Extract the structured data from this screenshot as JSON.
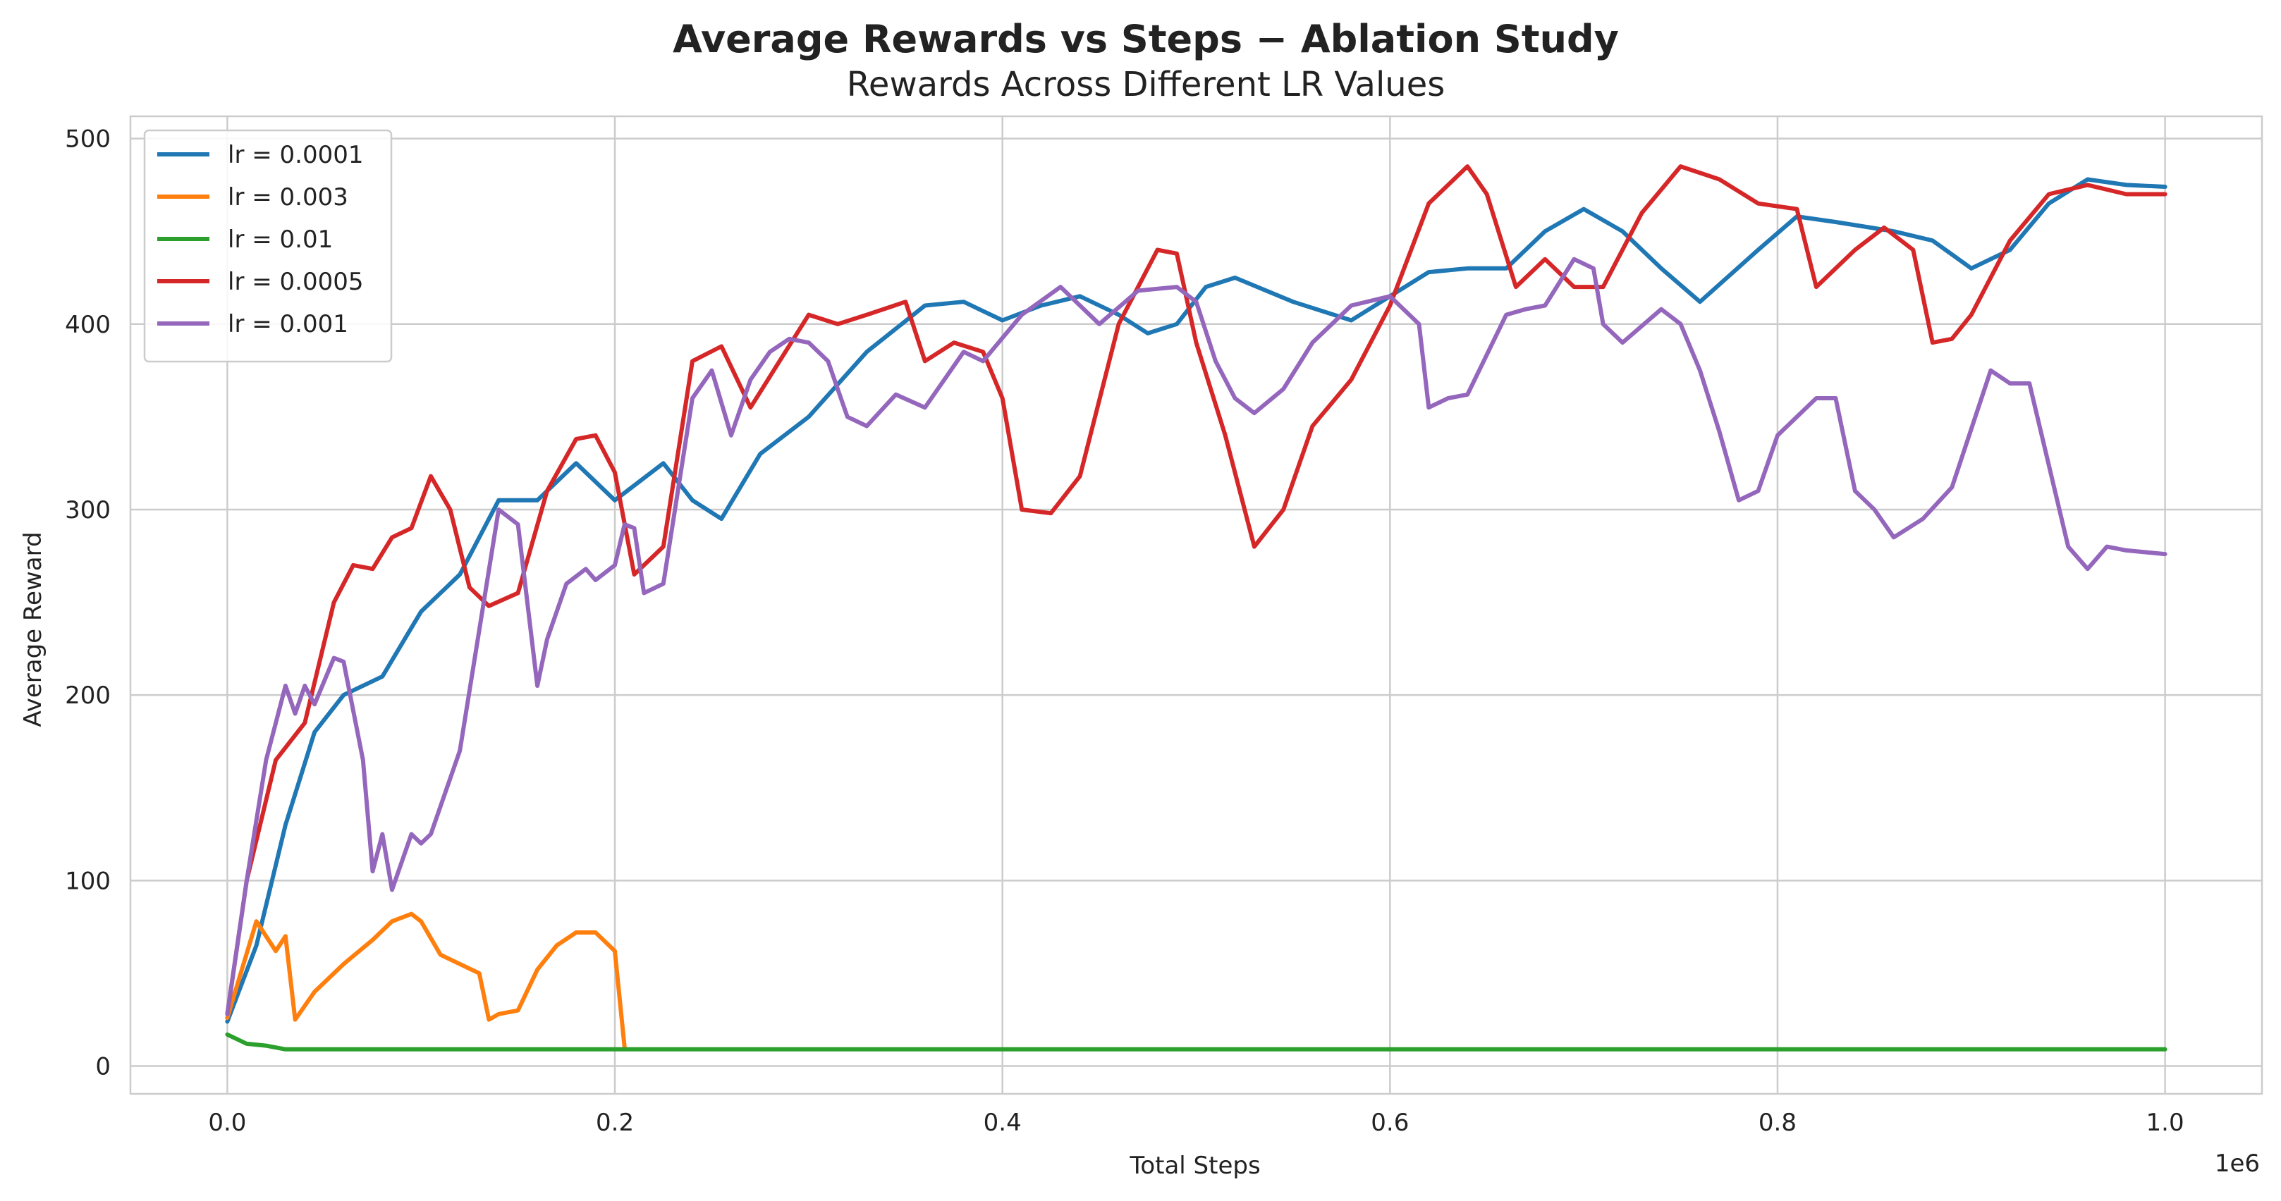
{
  "chart_data": {
    "type": "line",
    "title": "Average Rewards vs Steps  −  Ablation Study",
    "subtitle": "Rewards Across Different LR Values",
    "xlabel": "Total Steps",
    "ylabel": "Average Reward",
    "x_offset_label": "1e6",
    "xlim": [
      -0.05,
      1.05
    ],
    "ylim": [
      -15,
      512
    ],
    "xticks": [
      0.0,
      0.2,
      0.4,
      0.6,
      0.8,
      1.0
    ],
    "xtick_labels": [
      "0.0",
      "0.2",
      "0.4",
      "0.6",
      "0.8",
      "1.0"
    ],
    "yticks": [
      0,
      100,
      200,
      300,
      400,
      500
    ],
    "ytick_labels": [
      "0",
      "100",
      "200",
      "300",
      "400",
      "500"
    ],
    "grid": true,
    "legend_position": "top-left",
    "series": [
      {
        "name": "lr = 0.0001",
        "color": "#1f77b4",
        "x": [
          0.0,
          0.015,
          0.03,
          0.045,
          0.06,
          0.08,
          0.1,
          0.12,
          0.14,
          0.16,
          0.18,
          0.2,
          0.225,
          0.24,
          0.255,
          0.275,
          0.3,
          0.33,
          0.36,
          0.38,
          0.4,
          0.42,
          0.44,
          0.46,
          0.475,
          0.49,
          0.505,
          0.52,
          0.55,
          0.58,
          0.6,
          0.62,
          0.64,
          0.66,
          0.68,
          0.7,
          0.72,
          0.74,
          0.76,
          0.79,
          0.81,
          0.83,
          0.86,
          0.88,
          0.9,
          0.92,
          0.94,
          0.96,
          0.98,
          1.0
        ],
        "y": [
          24,
          65,
          130,
          180,
          200,
          210,
          245,
          265,
          305,
          305,
          325,
          305,
          325,
          305,
          295,
          330,
          350,
          385,
          410,
          412,
          402,
          410,
          415,
          405,
          395,
          400,
          420,
          425,
          412,
          402,
          415,
          428,
          430,
          430,
          450,
          462,
          450,
          430,
          412,
          440,
          458,
          455,
          450,
          445,
          430,
          440,
          465,
          478,
          475,
          474
        ]
      },
      {
        "name": "lr = 0.003",
        "color": "#ff7f0e",
        "x": [
          0.0,
          0.015,
          0.025,
          0.03,
          0.035,
          0.045,
          0.06,
          0.075,
          0.085,
          0.095,
          0.1,
          0.11,
          0.12,
          0.13,
          0.135,
          0.14,
          0.15,
          0.16,
          0.17,
          0.18,
          0.19,
          0.2,
          0.205
        ],
        "y": [
          26,
          78,
          62,
          70,
          25,
          40,
          55,
          68,
          78,
          82,
          78,
          60,
          55,
          50,
          25,
          28,
          30,
          52,
          65,
          72,
          72,
          62,
          10
        ]
      },
      {
        "name": "lr = 0.01",
        "color": "#2ca02c",
        "x": [
          0.0,
          0.01,
          0.02,
          0.03,
          0.1,
          0.2,
          0.4,
          0.6,
          0.8,
          1.0
        ],
        "y": [
          17,
          12,
          11,
          9,
          9,
          9,
          9,
          9,
          9,
          9
        ]
      },
      {
        "name": "lr = 0.0005",
        "color": "#d62728",
        "x": [
          0.0,
          0.01,
          0.025,
          0.04,
          0.055,
          0.065,
          0.075,
          0.085,
          0.095,
          0.105,
          0.115,
          0.125,
          0.135,
          0.15,
          0.165,
          0.18,
          0.19,
          0.2,
          0.21,
          0.225,
          0.24,
          0.255,
          0.27,
          0.285,
          0.3,
          0.315,
          0.33,
          0.35,
          0.36,
          0.375,
          0.39,
          0.4,
          0.41,
          0.425,
          0.44,
          0.46,
          0.48,
          0.49,
          0.5,
          0.515,
          0.53,
          0.545,
          0.56,
          0.58,
          0.6,
          0.62,
          0.64,
          0.65,
          0.665,
          0.68,
          0.695,
          0.71,
          0.73,
          0.75,
          0.77,
          0.79,
          0.81,
          0.82,
          0.84,
          0.855,
          0.87,
          0.88,
          0.89,
          0.9,
          0.92,
          0.94,
          0.96,
          0.98,
          1.0
        ],
        "y": [
          28,
          100,
          165,
          185,
          250,
          270,
          268,
          285,
          290,
          318,
          300,
          258,
          248,
          255,
          310,
          338,
          340,
          320,
          265,
          280,
          380,
          388,
          355,
          380,
          405,
          400,
          405,
          412,
          380,
          390,
          385,
          360,
          300,
          298,
          318,
          400,
          440,
          438,
          390,
          340,
          280,
          300,
          345,
          370,
          410,
          465,
          485,
          470,
          420,
          435,
          420,
          420,
          460,
          485,
          478,
          465,
          462,
          420,
          440,
          452,
          440,
          390,
          392,
          405,
          445,
          470,
          475,
          470,
          470
        ]
      },
      {
        "name": "lr = 0.001",
        "color": "#9467bd",
        "x": [
          0.0,
          0.01,
          0.02,
          0.03,
          0.035,
          0.04,
          0.045,
          0.055,
          0.06,
          0.07,
          0.075,
          0.08,
          0.085,
          0.095,
          0.1,
          0.105,
          0.12,
          0.14,
          0.15,
          0.16,
          0.165,
          0.175,
          0.185,
          0.19,
          0.2,
          0.205,
          0.21,
          0.215,
          0.225,
          0.24,
          0.25,
          0.26,
          0.27,
          0.28,
          0.29,
          0.3,
          0.31,
          0.32,
          0.33,
          0.345,
          0.36,
          0.38,
          0.39,
          0.41,
          0.43,
          0.45,
          0.47,
          0.49,
          0.5,
          0.51,
          0.52,
          0.53,
          0.545,
          0.56,
          0.58,
          0.6,
          0.615,
          0.62,
          0.63,
          0.64,
          0.66,
          0.67,
          0.68,
          0.695,
          0.705,
          0.71,
          0.72,
          0.74,
          0.75,
          0.76,
          0.77,
          0.78,
          0.79,
          0.8,
          0.82,
          0.83,
          0.84,
          0.85,
          0.86,
          0.875,
          0.89,
          0.91,
          0.92,
          0.93,
          0.95,
          0.96,
          0.97,
          0.98,
          1.0
        ],
        "y": [
          28,
          100,
          165,
          205,
          190,
          205,
          195,
          220,
          218,
          165,
          105,
          125,
          95,
          125,
          120,
          125,
          170,
          300,
          292,
          205,
          230,
          260,
          268,
          262,
          270,
          292,
          290,
          255,
          260,
          360,
          375,
          340,
          370,
          385,
          392,
          390,
          380,
          350,
          345,
          362,
          355,
          385,
          380,
          405,
          420,
          400,
          418,
          420,
          412,
          380,
          360,
          352,
          365,
          390,
          410,
          415,
          400,
          355,
          360,
          362,
          405,
          408,
          410,
          435,
          430,
          400,
          390,
          408,
          400,
          375,
          342,
          305,
          310,
          340,
          360,
          360,
          310,
          300,
          285,
          295,
          312,
          375,
          368,
          368,
          280,
          268,
          280,
          278,
          276
        ]
      }
    ]
  }
}
